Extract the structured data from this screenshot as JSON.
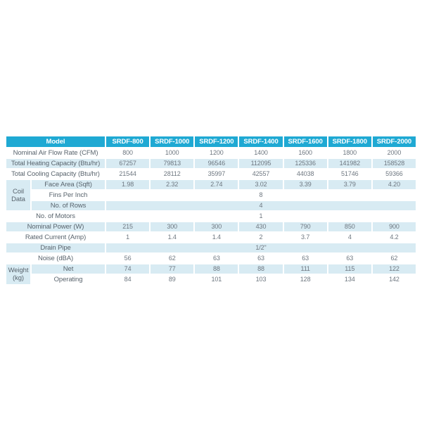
{
  "table": {
    "model_label": "Model",
    "columns": [
      "SRDF-800",
      "SRDF-1000",
      "SRDF-1200",
      "SRDF-1400",
      "SRDF-1600",
      "SRDF-1800",
      "SRDF-2000"
    ],
    "groups": {
      "coil": "Coil Data",
      "weight": "Weight (kg)"
    },
    "rows": [
      {
        "label": "Nominal Air Flow Rate (CFM)",
        "values": [
          "800",
          "1000",
          "1200",
          "1400",
          "1600",
          "1800",
          "2000"
        ]
      },
      {
        "label": "Total Heating Capacity (Btu/hr)",
        "values": [
          "67257",
          "79813",
          "96546",
          "112095",
          "125336",
          "141982",
          "158528"
        ]
      },
      {
        "label": "Total Cooling Capacity (Btu/hr)",
        "values": [
          "21544",
          "28112",
          "35997",
          "42557",
          "44038",
          "51746",
          "59366"
        ]
      },
      {
        "label": "Face Area (Sqft)",
        "values": [
          "1.98",
          "2.32",
          "2.74",
          "3.02",
          "3.39",
          "3.79",
          "4.20"
        ]
      },
      {
        "label": "Fins Per Inch",
        "merged_value": "8"
      },
      {
        "label": "No. of Rows",
        "merged_value": "4"
      },
      {
        "label": "No. of Motors",
        "merged_value": "1"
      },
      {
        "label": "Nominal Power (W)",
        "values": [
          "215",
          "300",
          "300",
          "430",
          "790",
          "850",
          "900"
        ]
      },
      {
        "label": "Rated Current (Amp)",
        "values": [
          "1",
          "1.4",
          "1.4",
          "2",
          "3.7",
          "4",
          "4.2"
        ]
      },
      {
        "label": "Drain Pipe",
        "merged_value": "1/2\""
      },
      {
        "label": "Noise (dBA)",
        "values": [
          "56",
          "62",
          "63",
          "63",
          "63",
          "63",
          "62"
        ]
      },
      {
        "label": "Net",
        "values": [
          "74",
          "77",
          "88",
          "88",
          "111",
          "115",
          "122"
        ]
      },
      {
        "label": "Operating",
        "values": [
          "84",
          "89",
          "101",
          "103",
          "128",
          "134",
          "142"
        ]
      }
    ],
    "colors": {
      "header_bg": "#1fa9d3",
      "row_stripe_bg": "#d8ebf3",
      "header_text": "#ffffff",
      "label_text": "#59646d",
      "value_text": "#6e7780",
      "page_bg": "#ffffff"
    }
  }
}
